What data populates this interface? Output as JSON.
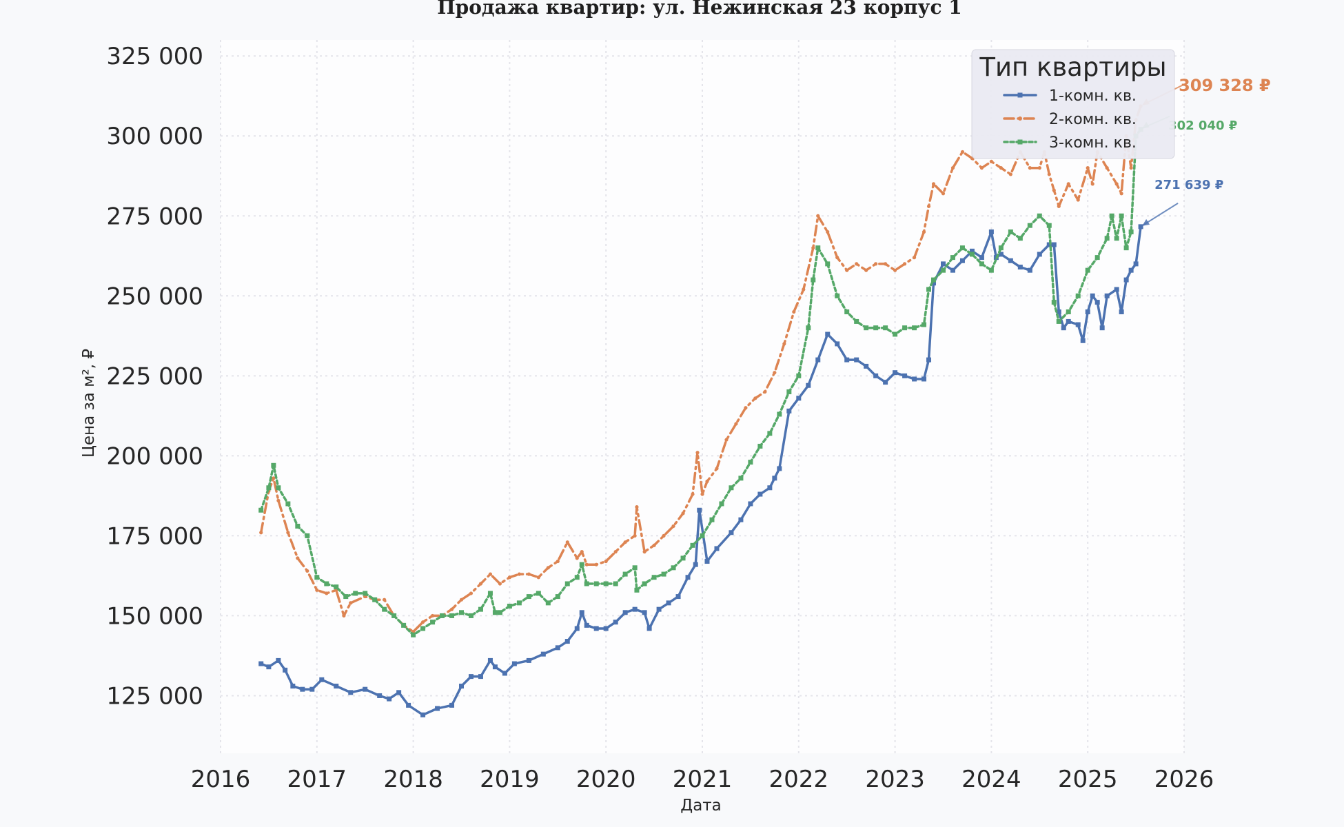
{
  "chart_data": {
    "type": "line",
    "title": "Продажа квартир: ул. Нежинская 23 корпус 1",
    "xlabel": "Дата",
    "ylabel": "Цена за м², ₽",
    "xlim": [
      2016.0,
      2026.0
    ],
    "ylim": [
      107000,
      330000
    ],
    "x_ticks": [
      "2016",
      "2017",
      "2018",
      "2019",
      "2020",
      "2021",
      "2022",
      "2023",
      "2024",
      "2025",
      "2026"
    ],
    "y_ticks": [
      "125 000",
      "150 000",
      "175 000",
      "200 000",
      "225 000",
      "250 000",
      "275 000",
      "300 000",
      "325 000"
    ],
    "grid": true,
    "legend": {
      "title": "Тип квартиры",
      "position": "top-right"
    },
    "series": [
      {
        "name": "1-комн. кв.",
        "color": "#4c72b0",
        "line_style": "solid",
        "x": [
          2016.42,
          2016.5,
          2016.6,
          2016.67,
          2016.75,
          2016.85,
          2016.95,
          2017.05,
          2017.2,
          2017.35,
          2017.5,
          2017.65,
          2017.75,
          2017.85,
          2017.95,
          2018.1,
          2018.25,
          2018.4,
          2018.5,
          2018.6,
          2018.7,
          2018.8,
          2018.85,
          2018.95,
          2019.05,
          2019.2,
          2019.35,
          2019.5,
          2019.6,
          2019.7,
          2019.75,
          2019.8,
          2019.9,
          2020.0,
          2020.1,
          2020.2,
          2020.3,
          2020.4,
          2020.45,
          2020.55,
          2020.65,
          2020.75,
          2020.85,
          2020.93,
          2020.97,
          2021.05,
          2021.15,
          2021.3,
          2021.4,
          2021.5,
          2021.6,
          2021.7,
          2021.75,
          2021.8,
          2021.9,
          2022.0,
          2022.1,
          2022.2,
          2022.3,
          2022.4,
          2022.5,
          2022.6,
          2022.7,
          2022.8,
          2022.9,
          2023.0,
          2023.1,
          2023.2,
          2023.3,
          2023.35,
          2023.4,
          2023.5,
          2023.6,
          2023.7,
          2023.8,
          2023.9,
          2024.0,
          2024.05,
          2024.1,
          2024.2,
          2024.3,
          2024.4,
          2024.5,
          2024.6,
          2024.65,
          2024.7,
          2024.75,
          2024.8,
          2024.9,
          2024.95,
          2025.0,
          2025.05,
          2025.1,
          2025.15,
          2025.2,
          2025.3,
          2025.35,
          2025.4,
          2025.45,
          2025.5,
          2025.55
        ],
        "y": [
          135000,
          134000,
          136000,
          133000,
          128000,
          127000,
          127000,
          130000,
          128000,
          126000,
          127000,
          125000,
          124000,
          126000,
          122000,
          119000,
          121000,
          122000,
          128000,
          131000,
          131000,
          136000,
          134000,
          132000,
          135000,
          136000,
          138000,
          140000,
          142000,
          146000,
          151000,
          147000,
          146000,
          146000,
          148000,
          151000,
          152000,
          151000,
          146000,
          152000,
          154000,
          156000,
          162000,
          166000,
          183000,
          167000,
          171000,
          176000,
          180000,
          185000,
          188000,
          190000,
          193000,
          196000,
          214000,
          218000,
          222000,
          230000,
          238000,
          235000,
          230000,
          230000,
          228000,
          225000,
          223000,
          226000,
          225000,
          224000,
          224000,
          230000,
          254000,
          260000,
          258000,
          261000,
          264000,
          262000,
          270000,
          262000,
          263000,
          261000,
          259000,
          258000,
          263000,
          266000,
          266000,
          245000,
          240000,
          242000,
          241000,
          236000,
          245000,
          250000,
          248000,
          240000,
          250000,
          252000,
          245000,
          255000,
          258000,
          260000,
          271639
        ]
      },
      {
        "name": "2-комн. кв.",
        "color": "#dd8452",
        "line_style": "dashdot",
        "x": [
          2016.42,
          2016.5,
          2016.55,
          2016.6,
          2016.7,
          2016.8,
          2016.9,
          2017.0,
          2017.1,
          2017.2,
          2017.28,
          2017.35,
          2017.5,
          2017.6,
          2017.7,
          2017.8,
          2017.9,
          2018.0,
          2018.1,
          2018.2,
          2018.3,
          2018.4,
          2018.5,
          2018.6,
          2018.7,
          2018.8,
          2018.9,
          2019.0,
          2019.1,
          2019.2,
          2019.3,
          2019.4,
          2019.5,
          2019.6,
          2019.7,
          2019.75,
          2019.8,
          2019.9,
          2020.0,
          2020.1,
          2020.2,
          2020.3,
          2020.32,
          2020.4,
          2020.5,
          2020.6,
          2020.7,
          2020.8,
          2020.9,
          2020.95,
          2021.0,
          2021.05,
          2021.15,
          2021.25,
          2021.35,
          2021.45,
          2021.55,
          2021.65,
          2021.75,
          2021.85,
          2021.95,
          2022.05,
          2022.15,
          2022.2,
          2022.3,
          2022.4,
          2022.5,
          2022.6,
          2022.7,
          2022.8,
          2022.9,
          2023.0,
          2023.1,
          2023.2,
          2023.3,
          2023.35,
          2023.4,
          2023.5,
          2023.6,
          2023.7,
          2023.8,
          2023.9,
          2024.0,
          2024.1,
          2024.2,
          2024.3,
          2024.4,
          2024.5,
          2024.55,
          2024.6,
          2024.65,
          2024.7,
          2024.8,
          2024.9,
          2025.0,
          2025.05,
          2025.1,
          2025.2,
          2025.3,
          2025.35,
          2025.4,
          2025.45,
          2025.5,
          2025.55
        ],
        "y": [
          176000,
          189000,
          193000,
          186000,
          176000,
          168000,
          164000,
          158000,
          157000,
          158000,
          150000,
          154000,
          156000,
          155000,
          155000,
          150000,
          147000,
          145000,
          148000,
          150000,
          150000,
          152000,
          155000,
          157000,
          160000,
          163000,
          160000,
          162000,
          163000,
          163000,
          162000,
          165000,
          167000,
          173000,
          168000,
          170000,
          166000,
          166000,
          167000,
          170000,
          173000,
          175000,
          184000,
          170000,
          172000,
          175000,
          178000,
          182000,
          188000,
          201000,
          188000,
          192000,
          196000,
          205000,
          210000,
          215000,
          218000,
          220000,
          226000,
          235000,
          245000,
          252000,
          265000,
          275000,
          270000,
          262000,
          258000,
          260000,
          258000,
          260000,
          260000,
          258000,
          260000,
          262000,
          270000,
          278000,
          285000,
          282000,
          290000,
          295000,
          293000,
          290000,
          292000,
          290000,
          288000,
          295000,
          290000,
          290000,
          295000,
          288000,
          283000,
          278000,
          285000,
          280000,
          290000,
          285000,
          295000,
          290000,
          285000,
          282000,
          300000,
          290000,
          305000,
          309328
        ]
      },
      {
        "name": "3-комн. кв.",
        "color": "#55a868",
        "line_style": "dotted",
        "x": [
          2016.42,
          2016.5,
          2016.55,
          2016.6,
          2016.7,
          2016.8,
          2016.9,
          2017.0,
          2017.1,
          2017.2,
          2017.3,
          2017.4,
          2017.5,
          2017.6,
          2017.7,
          2017.8,
          2017.9,
          2018.0,
          2018.1,
          2018.2,
          2018.3,
          2018.4,
          2018.5,
          2018.6,
          2018.7,
          2018.8,
          2018.85,
          2018.9,
          2019.0,
          2019.1,
          2019.2,
          2019.3,
          2019.4,
          2019.5,
          2019.6,
          2019.7,
          2019.75,
          2019.8,
          2019.9,
          2020.0,
          2020.1,
          2020.2,
          2020.3,
          2020.32,
          2020.4,
          2020.5,
          2020.6,
          2020.7,
          2020.8,
          2020.9,
          2021.0,
          2021.1,
          2021.2,
          2021.3,
          2021.4,
          2021.5,
          2021.6,
          2021.7,
          2021.8,
          2021.9,
          2022.0,
          2022.1,
          2022.15,
          2022.2,
          2022.3,
          2022.4,
          2022.5,
          2022.6,
          2022.7,
          2022.8,
          2022.9,
          2023.0,
          2023.1,
          2023.2,
          2023.3,
          2023.35,
          2023.4,
          2023.5,
          2023.6,
          2023.7,
          2023.8,
          2023.9,
          2024.0,
          2024.1,
          2024.2,
          2024.3,
          2024.4,
          2024.5,
          2024.6,
          2024.65,
          2024.7,
          2024.8,
          2024.9,
          2025.0,
          2025.1,
          2025.2,
          2025.25,
          2025.3,
          2025.35,
          2025.4,
          2025.45,
          2025.5,
          2025.55
        ],
        "y": [
          183000,
          190000,
          197000,
          190000,
          185000,
          178000,
          175000,
          162000,
          160000,
          159000,
          156000,
          157000,
          157000,
          155000,
          152000,
          150000,
          147000,
          144000,
          146000,
          148000,
          150000,
          150000,
          151000,
          150000,
          152000,
          157000,
          151000,
          151000,
          153000,
          154000,
          156000,
          157000,
          154000,
          156000,
          160000,
          162000,
          166000,
          160000,
          160000,
          160000,
          160000,
          163000,
          165000,
          158000,
          160000,
          162000,
          163000,
          165000,
          168000,
          172000,
          175000,
          180000,
          185000,
          190000,
          193000,
          198000,
          203000,
          207000,
          213000,
          220000,
          225000,
          240000,
          255000,
          265000,
          260000,
          250000,
          245000,
          242000,
          240000,
          240000,
          240000,
          238000,
          240000,
          240000,
          241000,
          252000,
          255000,
          258000,
          262000,
          265000,
          263000,
          260000,
          258000,
          265000,
          270000,
          268000,
          272000,
          275000,
          272000,
          248000,
          242000,
          245000,
          250000,
          258000,
          262000,
          268000,
          275000,
          268000,
          275000,
          265000,
          270000,
          300000,
          302040
        ]
      }
    ],
    "annotations": [
      {
        "text": "271 639 ₽",
        "series": "1-комн. кв.",
        "color": "#4c72b0"
      },
      {
        "text": "309 328 ₽",
        "series": "2-комн. кв.",
        "color": "#dd8452"
      },
      {
        "text": "302 040 ₽",
        "series": "3-комн. кв.",
        "color": "#55a868"
      }
    ]
  }
}
